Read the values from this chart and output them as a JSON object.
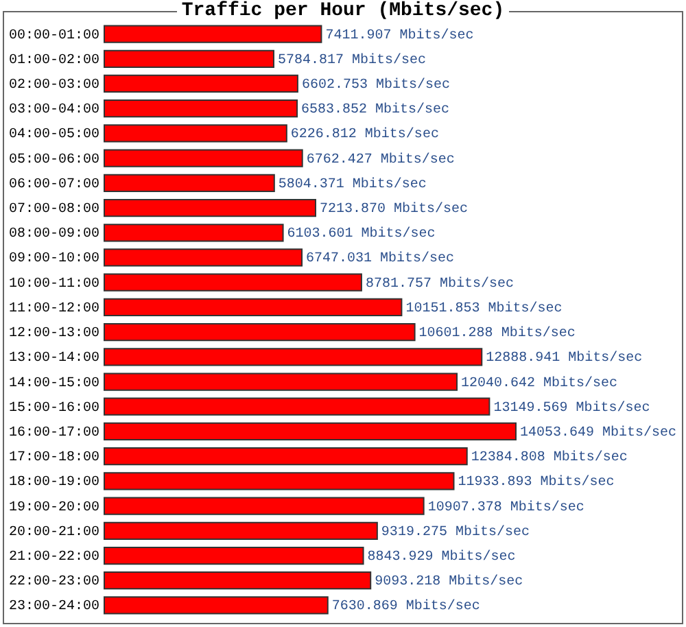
{
  "chart_data": {
    "type": "bar",
    "orientation": "horizontal",
    "title": "Traffic per Hour (Mbits/sec)",
    "categories": [
      "00:00-01:00",
      "01:00-02:00",
      "02:00-03:00",
      "03:00-04:00",
      "04:00-05:00",
      "05:00-06:00",
      "06:00-07:00",
      "07:00-08:00",
      "08:00-09:00",
      "09:00-10:00",
      "10:00-11:00",
      "11:00-12:00",
      "12:00-13:00",
      "13:00-14:00",
      "14:00-15:00",
      "15:00-16:00",
      "16:00-17:00",
      "17:00-18:00",
      "18:00-19:00",
      "19:00-20:00",
      "20:00-21:00",
      "21:00-22:00",
      "22:00-23:00",
      "23:00-24:00"
    ],
    "values": [
      7411.907,
      5784.817,
      6602.753,
      6583.852,
      6226.812,
      6762.427,
      5804.371,
      7213.87,
      6103.601,
      6747.031,
      8781.757,
      10151.853,
      10601.288,
      12888.941,
      12040.642,
      13149.569,
      14053.649,
      12384.808,
      11933.893,
      10907.378,
      9319.275,
      8843.929,
      9093.218,
      7630.869
    ],
    "value_labels": [
      "7411.907 Mbits/sec",
      "5784.817 Mbits/sec",
      "6602.753 Mbits/sec",
      "6583.852 Mbits/sec",
      "6226.812 Mbits/sec",
      "6762.427 Mbits/sec",
      "5804.371 Mbits/sec",
      "7213.870 Mbits/sec",
      "6103.601 Mbits/sec",
      "6747.031 Mbits/sec",
      "8781.757 Mbits/sec",
      "10151.853 Mbits/sec",
      "10601.288 Mbits/sec",
      "12888.941 Mbits/sec",
      "12040.642 Mbits/sec",
      "13149.569 Mbits/sec",
      "14053.649 Mbits/sec",
      "12384.808 Mbits/sec",
      "11933.893 Mbits/sec",
      "10907.378 Mbits/sec",
      "9319.275 Mbits/sec",
      "8843.929 Mbits/sec",
      "9093.218 Mbits/sec",
      "7630.869 Mbits/sec"
    ],
    "color": "#ff0000"
  }
}
